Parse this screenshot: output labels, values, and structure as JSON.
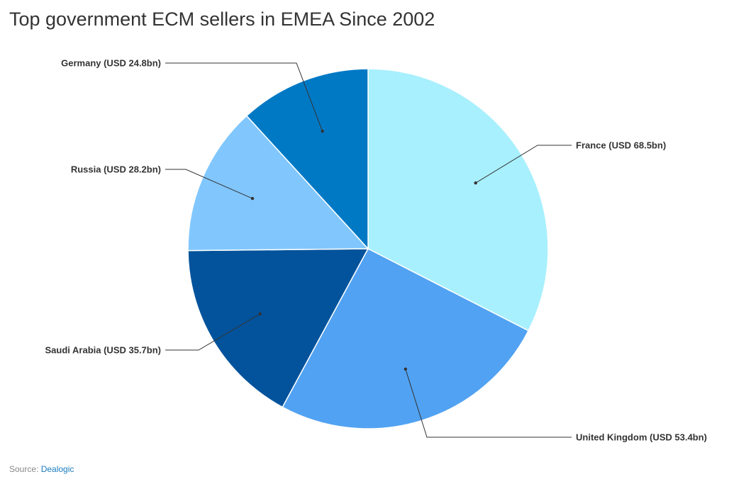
{
  "source": {
    "prefix": "Source:",
    "link_text": "Dealogic",
    "link_color": "#1a7bbf"
  },
  "chart_data": {
    "type": "pie",
    "title": "Top government ECM sellers in EMEA Since 2002",
    "unit": "USD bn",
    "start_angle_deg": 0,
    "direction": "clockwise",
    "slices": [
      {
        "name": "France",
        "value": 68.5,
        "label": "France (USD 68.5bn)",
        "color": "#a8f0fd",
        "label_side": "right"
      },
      {
        "name": "United Kingdom",
        "value": 53.4,
        "label": "United Kingdom (USD 53.4bn)",
        "color": "#51a2f2",
        "label_side": "right"
      },
      {
        "name": "Saudi Arabia",
        "value": 35.7,
        "label": "Saudi Arabia (USD 35.7bn)",
        "color": "#02539c",
        "label_side": "left"
      },
      {
        "name": "Russia",
        "value": 28.2,
        "label": "Russia (USD 28.2bn)",
        "color": "#81c7fe",
        "label_side": "left"
      },
      {
        "name": "Germany",
        "value": 24.8,
        "label": "Germany (USD 24.8bn)",
        "color": "#0079c5",
        "label_side": "left"
      }
    ]
  }
}
